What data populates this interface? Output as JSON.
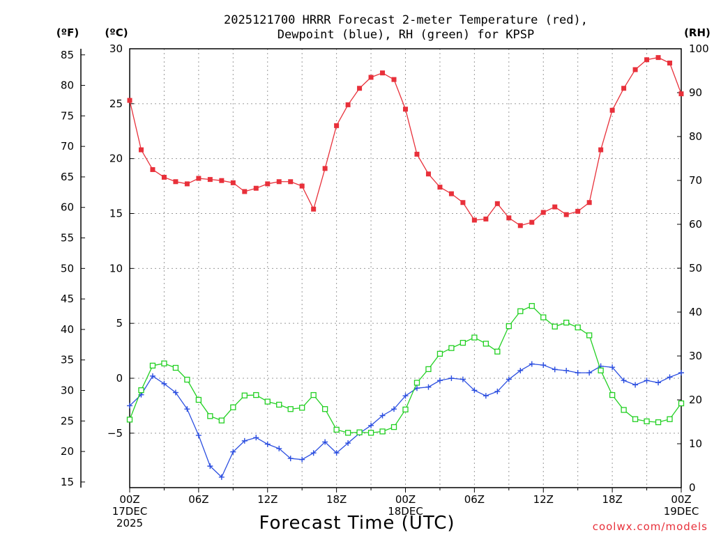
{
  "chart_data": {
    "type": "line",
    "title_lines": [
      "2025121700 HRRR Forecast 2-meter Temperature (red),",
      "Dewpoint (blue), RH (green) for KPSP"
    ],
    "xlabel": "Forecast Time (UTC)",
    "credit": "coolwx.com/models",
    "unit_f": "(ºF)",
    "unit_c": "(ºC)",
    "unit_rh": "(RH)",
    "x_hours": [
      0,
      1,
      2,
      3,
      4,
      5,
      6,
      7,
      8,
      9,
      10,
      11,
      12,
      13,
      14,
      15,
      16,
      17,
      18,
      19,
      20,
      21,
      22,
      23,
      24,
      25,
      26,
      27,
      28,
      29,
      30,
      31,
      32,
      33,
      34,
      35,
      36,
      37,
      38,
      39,
      40,
      41,
      42,
      43,
      44,
      45,
      46,
      47,
      48
    ],
    "x_ticks": [
      {
        "hour": 0,
        "lines": [
          "00Z",
          "17DEC",
          "2025"
        ]
      },
      {
        "hour": 6,
        "lines": [
          "06Z"
        ]
      },
      {
        "hour": 12,
        "lines": [
          "12Z"
        ]
      },
      {
        "hour": 18,
        "lines": [
          "18Z"
        ]
      },
      {
        "hour": 24,
        "lines": [
          "00Z",
          "18DEC"
        ]
      },
      {
        "hour": 30,
        "lines": [
          "06Z"
        ]
      },
      {
        "hour": 36,
        "lines": [
          "12Z"
        ]
      },
      {
        "hour": 42,
        "lines": [
          "18Z"
        ]
      },
      {
        "hour": 48,
        "lines": [
          "00Z",
          "19DEC"
        ]
      }
    ],
    "ylim_c": [
      -10,
      30
    ],
    "yticks_c": [
      -5,
      0,
      5,
      10,
      15,
      20,
      25,
      30
    ],
    "yticks_f": [
      15,
      20,
      25,
      30,
      35,
      40,
      45,
      50,
      55,
      60,
      65,
      70,
      75,
      80,
      85
    ],
    "ylim_rh": [
      0,
      100
    ],
    "yticks_rh": [
      0,
      10,
      20,
      30,
      40,
      50,
      60,
      70,
      80,
      90,
      100
    ],
    "grid": true,
    "series": [
      {
        "name": "Temperature",
        "axis": "c",
        "color": "#e8303a",
        "marker": "filled-square",
        "values": [
          25.3,
          20.8,
          19.0,
          18.3,
          17.9,
          17.7,
          18.2,
          18.1,
          18.0,
          17.8,
          17.0,
          17.3,
          17.7,
          17.9,
          17.9,
          17.5,
          15.4,
          19.1,
          23.0,
          24.9,
          26.4,
          27.4,
          27.8,
          27.2,
          24.5,
          20.4,
          18.6,
          17.4,
          16.8,
          16.0,
          14.4,
          14.5,
          15.9,
          14.6,
          13.9,
          14.2,
          15.1,
          15.6,
          14.9,
          15.2,
          16.0,
          20.8,
          24.4,
          26.4,
          28.1,
          29.0,
          29.2,
          28.7,
          25.9
        ]
      },
      {
        "name": "Dewpoint",
        "axis": "c",
        "color": "#2b4ee0",
        "marker": "plus",
        "values": [
          -2.5,
          -1.5,
          0.2,
          -0.5,
          -1.3,
          -2.8,
          -5.2,
          -8.0,
          -9.0,
          -6.7,
          -5.7,
          -5.4,
          -6.0,
          -6.4,
          -7.3,
          -7.4,
          -6.8,
          -5.8,
          -6.8,
          -5.9,
          -5.0,
          -4.3,
          -3.4,
          -2.8,
          -1.6,
          -0.9,
          -0.8,
          -0.2,
          0.0,
          -0.1,
          -1.1,
          -1.6,
          -1.2,
          -0.1,
          0.7,
          1.3,
          1.2,
          0.8,
          0.7,
          0.5,
          0.5,
          1.1,
          1.0,
          -0.2,
          -0.6,
          -0.2,
          -0.4,
          0.1,
          0.5
        ]
      },
      {
        "name": "RH",
        "axis": "rh",
        "color": "#22d022",
        "marker": "open-square",
        "values": [
          15.5,
          22.2,
          27.8,
          28.3,
          27.3,
          24.6,
          20.0,
          16.3,
          15.3,
          18.3,
          21.0,
          21.1,
          19.6,
          18.9,
          17.9,
          18.2,
          21.1,
          17.9,
          13.2,
          12.5,
          12.6,
          12.5,
          12.8,
          13.8,
          17.8,
          23.9,
          27.0,
          30.5,
          31.8,
          33.0,
          34.2,
          32.8,
          31.0,
          36.8,
          40.2,
          41.4,
          38.8,
          36.7,
          37.6,
          36.5,
          34.7,
          26.7,
          21.1,
          17.7,
          15.6,
          15.1,
          14.9,
          15.6,
          19.2
        ]
      }
    ]
  }
}
